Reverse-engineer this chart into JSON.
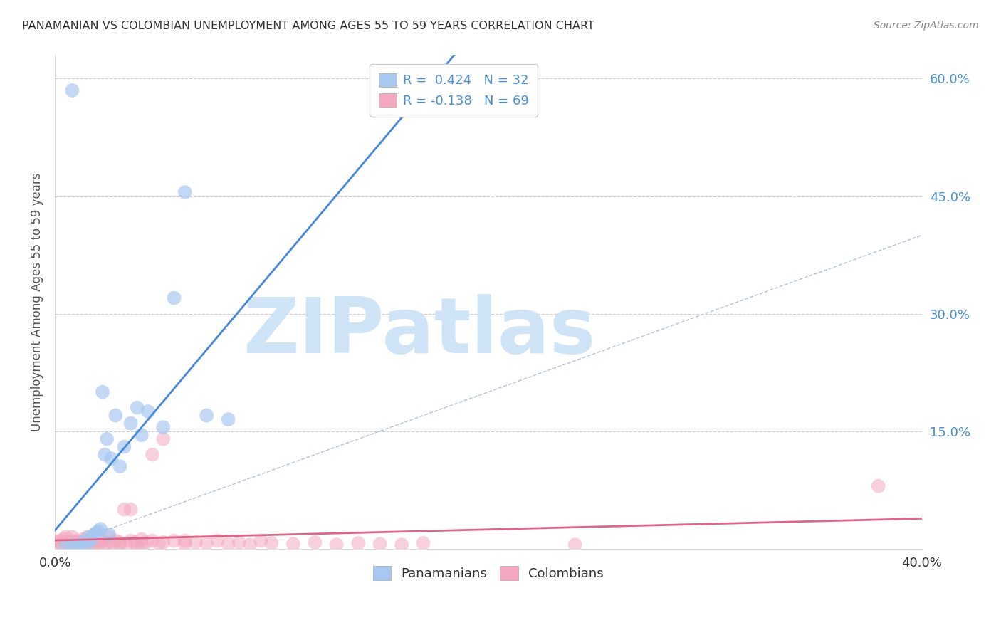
{
  "title": "PANAMANIAN VS COLOMBIAN UNEMPLOYMENT AMONG AGES 55 TO 59 YEARS CORRELATION CHART",
  "source": "Source: ZipAtlas.com",
  "ylabel": "Unemployment Among Ages 55 to 59 years",
  "xlim": [
    0.0,
    0.4
  ],
  "ylim": [
    0.0,
    0.63
  ],
  "ytick_positions": [
    0.0,
    0.15,
    0.3,
    0.45,
    0.6
  ],
  "ytick_labels": [
    "",
    "15.0%",
    "30.0%",
    "45.0%",
    "60.0%"
  ],
  "xtick_positions": [
    0.0,
    0.1,
    0.2,
    0.3,
    0.4
  ],
  "xtick_labels": [
    "0.0%",
    "",
    "",
    "",
    "40.0%"
  ],
  "pan_R": 0.424,
  "pan_N": 32,
  "col_R": -0.138,
  "col_N": 69,
  "pan_color": "#a8c8f0",
  "col_color": "#f4a8c0",
  "pan_line_color": "#4488dd",
  "col_line_color": "#dd6688",
  "diag_color": "#aabbdd",
  "watermark": "ZIPatlas",
  "watermark_color": "#d0e4f8",
  "background_color": "#ffffff",
  "grid_color": "#cccccc",
  "pan_scatter_x": [
    0.005,
    0.008,
    0.01,
    0.012,
    0.013,
    0.014,
    0.015,
    0.016,
    0.017,
    0.018,
    0.019,
    0.02,
    0.021,
    0.022,
    0.023,
    0.024,
    0.025,
    0.026,
    0.028,
    0.03,
    0.032,
    0.035,
    0.038,
    0.04,
    0.043,
    0.05,
    0.055,
    0.06,
    0.07,
    0.08,
    0.008,
    0.01
  ],
  "pan_scatter_y": [
    0.003,
    0.005,
    0.004,
    0.006,
    0.008,
    0.01,
    0.007,
    0.015,
    0.012,
    0.018,
    0.02,
    0.022,
    0.025,
    0.2,
    0.12,
    0.14,
    0.018,
    0.115,
    0.17,
    0.105,
    0.13,
    0.16,
    0.18,
    0.145,
    0.175,
    0.155,
    0.32,
    0.455,
    0.17,
    0.165,
    0.585,
    0.002
  ],
  "col_scatter_x": [
    0.001,
    0.002,
    0.003,
    0.004,
    0.005,
    0.005,
    0.006,
    0.007,
    0.007,
    0.008,
    0.008,
    0.009,
    0.01,
    0.01,
    0.011,
    0.012,
    0.013,
    0.014,
    0.015,
    0.015,
    0.016,
    0.017,
    0.018,
    0.019,
    0.02,
    0.02,
    0.021,
    0.022,
    0.023,
    0.025,
    0.025,
    0.027,
    0.028,
    0.03,
    0.03,
    0.032,
    0.033,
    0.035,
    0.035,
    0.037,
    0.038,
    0.04,
    0.04,
    0.042,
    0.045,
    0.045,
    0.048,
    0.05,
    0.05,
    0.055,
    0.06,
    0.06,
    0.065,
    0.07,
    0.075,
    0.08,
    0.085,
    0.09,
    0.095,
    0.1,
    0.11,
    0.12,
    0.13,
    0.14,
    0.15,
    0.16,
    0.17,
    0.24,
    0.38
  ],
  "col_scatter_y": [
    0.008,
    0.01,
    0.007,
    0.012,
    0.005,
    0.015,
    0.008,
    0.01,
    0.006,
    0.009,
    0.015,
    0.007,
    0.01,
    0.005,
    0.008,
    0.006,
    0.012,
    0.01,
    0.007,
    0.015,
    0.008,
    0.005,
    0.01,
    0.012,
    0.006,
    0.015,
    0.008,
    0.01,
    0.005,
    0.008,
    0.015,
    0.007,
    0.01,
    0.005,
    0.008,
    0.05,
    0.006,
    0.05,
    0.01,
    0.008,
    0.005,
    0.012,
    0.006,
    0.008,
    0.12,
    0.01,
    0.007,
    0.008,
    0.14,
    0.01,
    0.006,
    0.01,
    0.008,
    0.007,
    0.01,
    0.006,
    0.008,
    0.005,
    0.01,
    0.007,
    0.006,
    0.008,
    0.005,
    0.007,
    0.006,
    0.005,
    0.007,
    0.005,
    0.08
  ]
}
